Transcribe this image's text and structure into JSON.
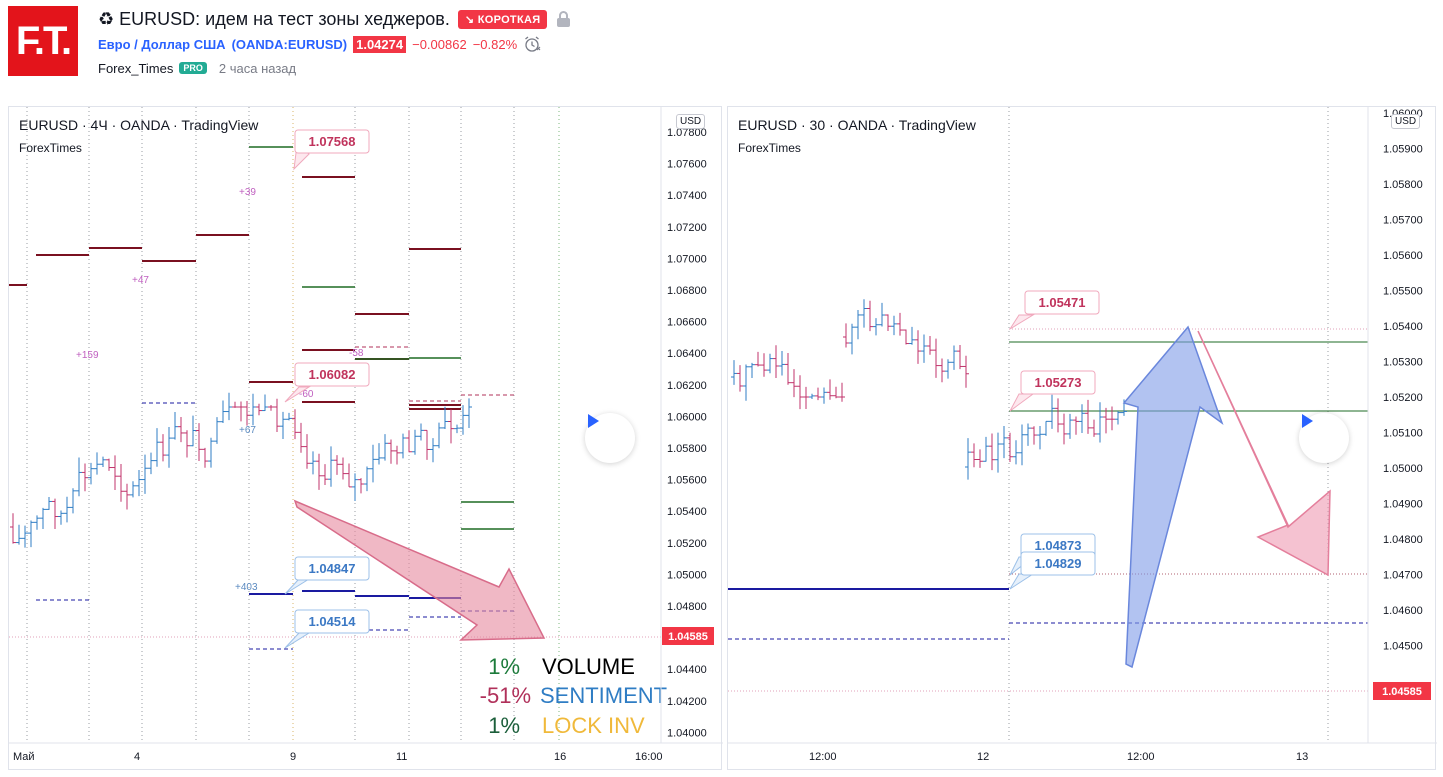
{
  "header": {
    "logo_text": "F.T.",
    "title": "♻ EURUSD: идем на тест зоны хеджеров.",
    "direction_badge": "↘ КОРОТКАЯ",
    "symbol_name": "Евро / Доллар США",
    "symbol_code": "(OANDA:EURUSD)",
    "price": "1.04274",
    "change": "−0.00862",
    "change_pct": "−0.82%",
    "author": "Forex_Times",
    "author_badge": "PRO",
    "time_ago": "2 часа назад",
    "colors": {
      "brand": "#e3141b",
      "negative": "#f23645",
      "link": "#2962ff",
      "pro": "#22ab94"
    }
  },
  "left_chart": {
    "legend": "EURUSD · 4Ч · OANDA · TradingView",
    "sublabel": "ForexTimes",
    "currency_tag": "USD",
    "price_axis": [
      "1.07800",
      "1.07600",
      "1.07400",
      "1.07200",
      "1.07000",
      "1.06800",
      "1.06600",
      "1.06400",
      "1.06200",
      "1.06000",
      "1.05800",
      "1.05600",
      "1.05400",
      "1.05200",
      "1.05000",
      "1.04800",
      "1.04600",
      "1.04400",
      "1.04200",
      "1.04000"
    ],
    "current_price": "1.04585",
    "time_axis": [
      "Май",
      "4",
      "9",
      "11",
      "16",
      "16:00"
    ],
    "callouts": [
      "1.07568",
      "1.06082",
      "1.04847",
      "1.04514"
    ],
    "small_labels": [
      "+39",
      "+47",
      "+159",
      "-58",
      "-60",
      "+67",
      "+403"
    ],
    "stats": [
      {
        "value": "1%",
        "label": "VOLUME",
        "value_color": "#1b7a3a",
        "label_color": "#000000"
      },
      {
        "value": "-51%",
        "label": "SENTIMENT",
        "value_color": "#b0305a",
        "label_color": "#2f7dc4"
      },
      {
        "value": "1%",
        "label": "LOCK INV",
        "value_color": "#1b5e3a",
        "label_color": "#f0b93a"
      }
    ]
  },
  "right_chart": {
    "legend": "EURUSD · 30 · OANDA · TradingView",
    "sublabel": "ForexTimes",
    "currency_tag": "USD",
    "price_axis": [
      "1.06000",
      "1.05900",
      "1.05800",
      "1.05700",
      "1.05600",
      "1.05500",
      "1.05400",
      "1.05300",
      "1.05200",
      "1.05100",
      "1.05000",
      "1.04900",
      "1.04800",
      "1.04700",
      "1.04600",
      "1.04500"
    ],
    "current_price": "1.04585",
    "time_axis": [
      "12:00",
      "12",
      "12:00",
      "13"
    ],
    "callouts": [
      "1.05471",
      "1.05273",
      "1.04873",
      "1.04829"
    ]
  }
}
